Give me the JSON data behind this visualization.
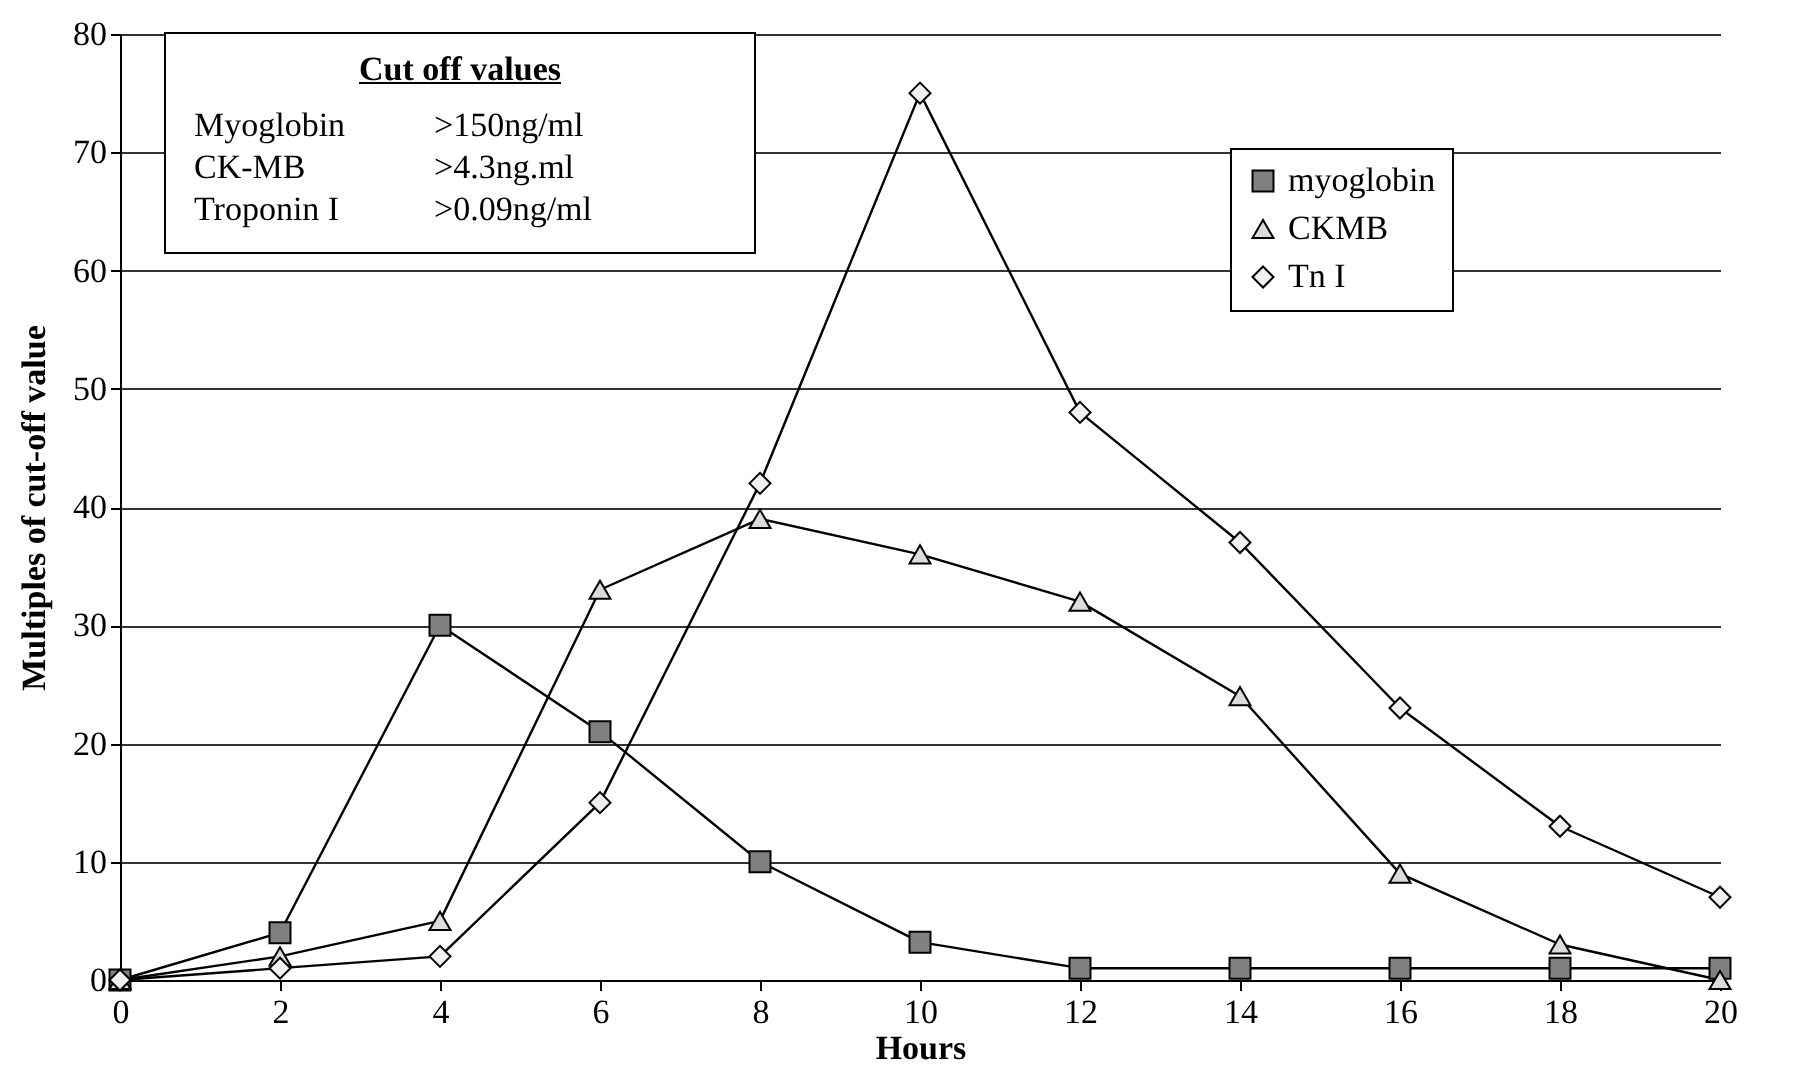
{
  "chart_data": {
    "type": "line",
    "xlabel": "Hours",
    "ylabel": "Multiples of cut-off value",
    "x": [
      0,
      2,
      4,
      6,
      8,
      10,
      12,
      14,
      16,
      18,
      20
    ],
    "series": [
      {
        "name": "myoglobin",
        "color": "#808080",
        "marker": "square",
        "values": [
          0,
          4,
          30,
          21,
          10,
          3.2,
          1,
          1,
          1,
          1,
          1
        ]
      },
      {
        "name": "CKMB",
        "color": "#dcdcdc",
        "marker": "triangle",
        "values": [
          0,
          2,
          5,
          33,
          39,
          36,
          32,
          24,
          9,
          3,
          0
        ]
      },
      {
        "name": "Tn I",
        "color": "#f0f0f0",
        "marker": "diamond",
        "values": [
          0,
          1,
          2,
          15,
          42,
          75,
          48,
          37,
          23,
          13,
          7
        ]
      }
    ],
    "xlim": [
      0,
      20
    ],
    "xticks": [
      0,
      2,
      4,
      6,
      8,
      10,
      12,
      14,
      16,
      18,
      20
    ],
    "ylim": [
      0,
      80
    ],
    "yticks": [
      0,
      10,
      20,
      30,
      40,
      50,
      60,
      70,
      80
    ],
    "grid": "y",
    "legend": "top right",
    "annotations": [
      "Cut off values",
      "Myoglobin",
      ">150ng/ml",
      "CK-MB",
      ">4.3ng.ml",
      "Troponin I",
      ">0.09ng/ml"
    ]
  }
}
